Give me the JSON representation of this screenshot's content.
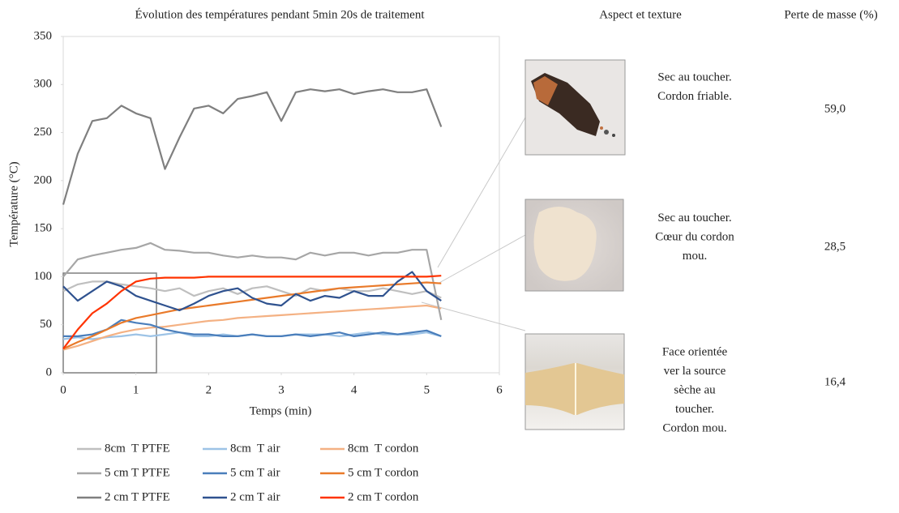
{
  "chart_data": {
    "type": "line",
    "title": "Évolution des températures pendant 5min 20s de traitement",
    "x_label": "Temps (min)",
    "y_label": "Température (°C)",
    "x": [
      0,
      0.2,
      0.4,
      0.6,
      0.8,
      1.0,
      1.2,
      1.4,
      1.6,
      1.8,
      2.0,
      2.2,
      2.4,
      2.6,
      2.8,
      3.0,
      3.2,
      3.4,
      3.6,
      3.8,
      4.0,
      4.2,
      4.4,
      4.6,
      4.8,
      5.0,
      5.2
    ],
    "xlim": [
      0,
      6
    ],
    "xticks": [
      0,
      1,
      2,
      3,
      4,
      5,
      6
    ],
    "ylim": [
      0,
      350
    ],
    "yticks": [
      0,
      50,
      100,
      150,
      200,
      250,
      300,
      350
    ],
    "grid": false,
    "series": [
      {
        "name": "8cm  T PTFE",
        "color": "#bfbfbf",
        "values": [
          85,
          92,
          95,
          95,
          92,
          90,
          88,
          85,
          88,
          80,
          85,
          88,
          82,
          88,
          90,
          85,
          80,
          88,
          85,
          88,
          85,
          85,
          88,
          85,
          82,
          85,
          78
        ]
      },
      {
        "name": "8cm  T air",
        "color": "#9dc3e6",
        "values": [
          35,
          37,
          35,
          37,
          38,
          40,
          38,
          40,
          42,
          38,
          38,
          40,
          38,
          40,
          38,
          38,
          40,
          40,
          40,
          38,
          40,
          42,
          40,
          40,
          40,
          42,
          38
        ]
      },
      {
        "name": "8cm  T cordon",
        "color": "#f4b183",
        "values": [
          24,
          28,
          33,
          38,
          42,
          45,
          47,
          48,
          50,
          52,
          54,
          55,
          57,
          58,
          59,
          60,
          61,
          62,
          63,
          64,
          65,
          66,
          67,
          68,
          69,
          70,
          67
        ]
      },
      {
        "name": "5 cm T PTFE",
        "color": "#a6a6a6",
        "values": [
          100,
          118,
          122,
          125,
          128,
          130,
          135,
          128,
          127,
          125,
          125,
          122,
          120,
          122,
          120,
          120,
          118,
          125,
          122,
          125,
          125,
          122,
          125,
          125,
          128,
          128,
          55
        ]
      },
      {
        "name": "5 cm T air",
        "color": "#4a7ebb",
        "values": [
          38,
          38,
          40,
          45,
          55,
          52,
          50,
          45,
          42,
          40,
          40,
          38,
          38,
          40,
          38,
          38,
          40,
          38,
          40,
          42,
          38,
          40,
          42,
          40,
          42,
          44,
          38
        ]
      },
      {
        "name": "5 cm T cordon",
        "color": "#e97a2a",
        "values": [
          25,
          32,
          38,
          45,
          52,
          57,
          60,
          63,
          66,
          68,
          70,
          72,
          74,
          76,
          78,
          80,
          82,
          84,
          86,
          88,
          89,
          90,
          91,
          92,
          93,
          94,
          93
        ]
      },
      {
        "name": "2 cm T PTFE",
        "color": "#7f7f7f",
        "values": [
          175,
          228,
          262,
          265,
          278,
          270,
          265,
          212,
          245,
          275,
          278,
          270,
          285,
          288,
          292,
          262,
          292,
          295,
          293,
          295,
          290,
          293,
          295,
          292,
          292,
          295,
          256
        ]
      },
      {
        "name": "2 cm T air",
        "color": "#2f528f",
        "values": [
          90,
          75,
          85,
          95,
          90,
          80,
          75,
          70,
          65,
          72,
          80,
          85,
          88,
          78,
          72,
          70,
          82,
          75,
          80,
          78,
          85,
          80,
          80,
          95,
          105,
          85,
          75
        ]
      },
      {
        "name": "2 cm T cordon",
        "color": "#ff3300",
        "values": [
          25,
          45,
          62,
          72,
          85,
          95,
          98,
          99,
          99,
          99,
          100,
          100,
          100,
          100,
          100,
          100,
          100,
          100,
          100,
          100,
          100,
          100,
          100,
          100,
          100,
          100,
          101
        ]
      }
    ]
  },
  "panel": {
    "header_aspect": "Aspect et texture",
    "header_mass": "Perte de masse (%)",
    "rows": [
      {
        "description": [
          "Sec au toucher.",
          "Cordon friable."
        ],
        "mass": "59,0"
      },
      {
        "description": [
          "Sec au toucher.",
          "Cœur du cordon",
          "mou."
        ],
        "mass": "28,5"
      },
      {
        "description": [
          "Face orientée",
          "ver la source",
          "sèche au",
          "toucher.",
          "Cordon mou."
        ],
        "mass": "16,4"
      }
    ]
  }
}
